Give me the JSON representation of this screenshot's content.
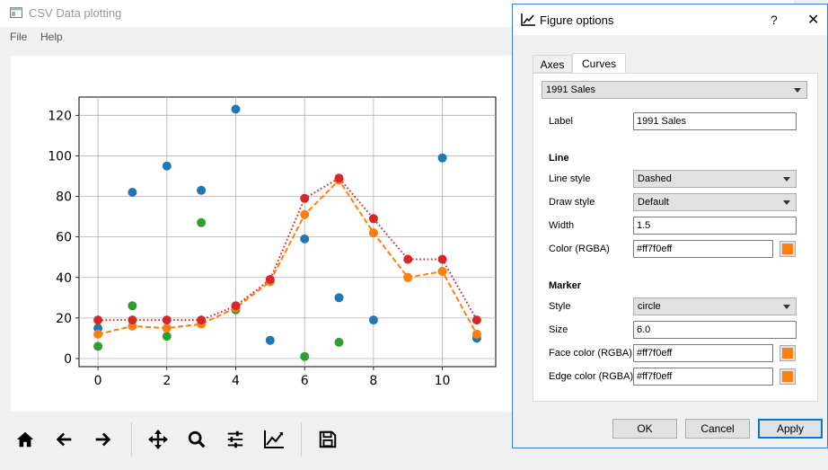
{
  "window": {
    "title": "CSV Data plotting"
  },
  "menu": [
    "File",
    "Help"
  ],
  "toolbar": {
    "icons": [
      "home-icon",
      "back-arrow-icon",
      "forward-arrow-icon",
      "pan-icon",
      "zoom-icon",
      "subplots-sliders-icon",
      "edit-curves-icon",
      "save-icon"
    ]
  },
  "chart_data": {
    "type": "scatter",
    "xlim": [
      -0.55,
      11.55
    ],
    "ylim": [
      -4,
      129
    ],
    "xticks": [
      0,
      2,
      4,
      6,
      8,
      10
    ],
    "yticks": [
      0,
      20,
      40,
      60,
      80,
      100,
      120
    ],
    "grid": true,
    "series": [
      {
        "color": "#1f77b4",
        "line": "none",
        "x": [
          0,
          1,
          2,
          3,
          4,
          5,
          6,
          7,
          8,
          10,
          11
        ],
        "y": [
          15,
          82,
          95,
          83,
          123,
          9,
          59,
          30,
          19,
          99,
          10
        ]
      },
      {
        "color": "#2ca02c",
        "line": "none",
        "x": [
          0,
          1,
          2,
          3,
          4,
          5,
          6,
          7,
          8,
          9,
          10,
          11
        ],
        "y": [
          6,
          26,
          11,
          67,
          24,
          38,
          1,
          8,
          62,
          40,
          43,
          12
        ]
      },
      {
        "name": "1991 Sales",
        "color": "#ff7f0e",
        "line": "dashed",
        "x": [
          0,
          1,
          2,
          3,
          4,
          5,
          6,
          7,
          8,
          9,
          10,
          11
        ],
        "y": [
          12,
          16,
          15,
          17,
          25,
          38,
          71,
          88,
          62,
          40,
          43,
          12
        ]
      },
      {
        "color": "#d62728",
        "line": "dotted",
        "x": [
          0,
          1,
          2,
          3,
          4,
          5,
          6,
          7,
          8,
          9,
          10,
          11
        ],
        "y": [
          19,
          19,
          19,
          19,
          26,
          39,
          79,
          89,
          69,
          49,
          49,
          19
        ]
      }
    ]
  },
  "dialog": {
    "title": "Figure options",
    "help": "?",
    "close": "✕",
    "tabs": [
      "Axes",
      "Curves"
    ],
    "curve_select": "1991 Sales",
    "label_label": "Label",
    "label_value": "1991 Sales",
    "line_header": "Line",
    "line_style_label": "Line style",
    "line_style_value": "Dashed",
    "draw_style_label": "Draw style",
    "draw_style_value": "Default",
    "width_label": "Width",
    "width_value": "1.5",
    "color_label": "Color (RGBA)",
    "color_value": "#ff7f0eff",
    "marker_header": "Marker",
    "marker_style_label": "Style",
    "marker_style_value": "circle",
    "size_label": "Size",
    "size_value": "6.0",
    "face_color_label": "Face color (RGBA)",
    "face_color_value": "#ff7f0eff",
    "edge_color_label": "Edge color (RGBA)",
    "edge_color_value": "#ff7f0eff",
    "swatch_color": "#ff7f0e",
    "ok": "OK",
    "cancel": "Cancel",
    "apply": "Apply"
  }
}
